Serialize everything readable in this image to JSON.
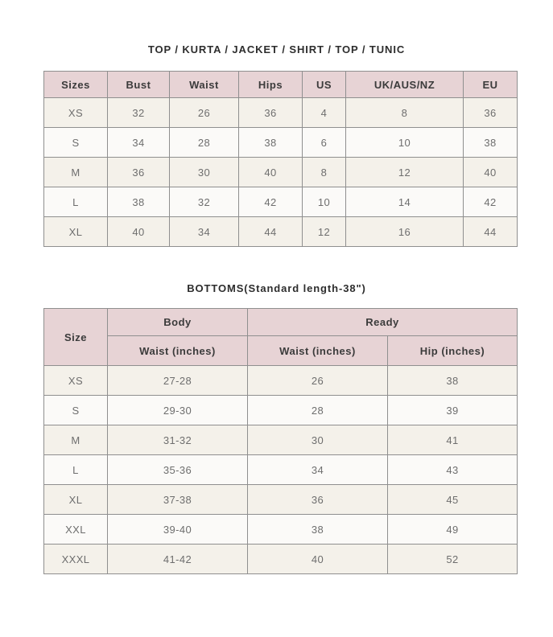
{
  "colors": {
    "header_bg": "#e7d3d5",
    "row_alt_bg": "#f4f1ea",
    "row_bg": "#fbfaf8",
    "border": "#8f8f8f",
    "title_text": "#2d2d2d",
    "header_text": "#3b3b3b",
    "body_text": "#6e6e6e"
  },
  "tops_chart": {
    "title": "TOP / KURTA / JACKET / SHIRT / TOP / TUNIC",
    "columns": [
      "Sizes",
      "Bust",
      "Waist",
      "Hips",
      "US",
      "UK/AUS/NZ",
      "EU"
    ],
    "rows": [
      [
        "XS",
        "32",
        "26",
        "36",
        "4",
        "8",
        "36"
      ],
      [
        "S",
        "34",
        "28",
        "38",
        "6",
        "10",
        "38"
      ],
      [
        "M",
        "36",
        "30",
        "40",
        "8",
        "12",
        "40"
      ],
      [
        "L",
        "38",
        "32",
        "42",
        "10",
        "14",
        "42"
      ],
      [
        "XL",
        "40",
        "34",
        "44",
        "12",
        "16",
        "44"
      ]
    ]
  },
  "bottoms_chart": {
    "title": "BOTTOMS(Standard length-38\")",
    "header": {
      "size_label": "Size",
      "body_group": "Body",
      "ready_group": "Ready",
      "body_waist": "Waist (inches)",
      "ready_waist": "Waist (inches)",
      "ready_hip": "Hip (inches)"
    },
    "rows": [
      [
        "XS",
        "27-28",
        "26",
        "38"
      ],
      [
        "S",
        "29-30",
        "28",
        "39"
      ],
      [
        "M",
        "31-32",
        "30",
        "41"
      ],
      [
        "L",
        "35-36",
        "34",
        "43"
      ],
      [
        "XL",
        "37-38",
        "36",
        "45"
      ],
      [
        "XXL",
        "39-40",
        "38",
        "49"
      ],
      [
        "XXXL",
        "41-42",
        "40",
        "52"
      ]
    ]
  }
}
